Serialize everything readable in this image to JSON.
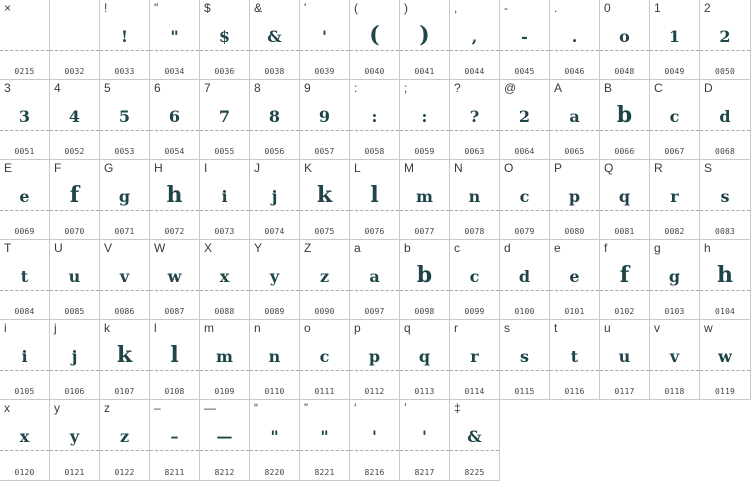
{
  "cells": [
    {
      "key": "×",
      "glyph": "",
      "code": "0215"
    },
    {
      "key": "",
      "glyph": "",
      "code": "0032"
    },
    {
      "key": "!",
      "glyph": "!",
      "code": "0033"
    },
    {
      "key": "\"",
      "glyph": "\"",
      "code": "0034"
    },
    {
      "key": "$",
      "glyph": "$",
      "code": "0036"
    },
    {
      "key": "&",
      "glyph": "&",
      "code": "0038"
    },
    {
      "key": "'",
      "glyph": "'",
      "code": "0039"
    },
    {
      "key": "(",
      "glyph": "(",
      "code": "0040"
    },
    {
      "key": ")",
      "glyph": ")",
      "code": "0041"
    },
    {
      "key": ",",
      "glyph": ",",
      "code": "0044"
    },
    {
      "key": "-",
      "glyph": "-",
      "code": "0045"
    },
    {
      "key": ".",
      "glyph": ".",
      "code": "0046"
    },
    {
      "key": "0",
      "glyph": "o",
      "code": "0048"
    },
    {
      "key": "1",
      "glyph": "1",
      "code": "0049"
    },
    {
      "key": "2",
      "glyph": "2",
      "code": "0050"
    },
    {
      "key": "3",
      "glyph": "3",
      "code": "0051"
    },
    {
      "key": "4",
      "glyph": "4",
      "code": "0052"
    },
    {
      "key": "5",
      "glyph": "5",
      "code": "0053"
    },
    {
      "key": "6",
      "glyph": "6",
      "code": "0054"
    },
    {
      "key": "7",
      "glyph": "7",
      "code": "0055"
    },
    {
      "key": "8",
      "glyph": "8",
      "code": "0056"
    },
    {
      "key": "9",
      "glyph": "9",
      "code": "0057"
    },
    {
      "key": ":",
      "glyph": ":",
      "code": "0058"
    },
    {
      "key": ";",
      "glyph": ":",
      "code": "0059"
    },
    {
      "key": "?",
      "glyph": "?",
      "code": "0063"
    },
    {
      "key": "@",
      "glyph": "2",
      "code": "0064"
    },
    {
      "key": "A",
      "glyph": "a",
      "code": "0065"
    },
    {
      "key": "B",
      "glyph": "b",
      "code": "0066"
    },
    {
      "key": "C",
      "glyph": "c",
      "code": "0067"
    },
    {
      "key": "D",
      "glyph": "d",
      "code": "0068"
    },
    {
      "key": "E",
      "glyph": "e",
      "code": "0069"
    },
    {
      "key": "F",
      "glyph": "f",
      "code": "0070"
    },
    {
      "key": "G",
      "glyph": "g",
      "code": "0071"
    },
    {
      "key": "H",
      "glyph": "h",
      "code": "0072"
    },
    {
      "key": "I",
      "glyph": "i",
      "code": "0073"
    },
    {
      "key": "J",
      "glyph": "j",
      "code": "0074"
    },
    {
      "key": "K",
      "glyph": "k",
      "code": "0075"
    },
    {
      "key": "L",
      "glyph": "l",
      "code": "0076"
    },
    {
      "key": "M",
      "glyph": "m",
      "code": "0077"
    },
    {
      "key": "N",
      "glyph": "n",
      "code": "0078"
    },
    {
      "key": "O",
      "glyph": "c",
      "code": "0079"
    },
    {
      "key": "P",
      "glyph": "p",
      "code": "0080"
    },
    {
      "key": "Q",
      "glyph": "q",
      "code": "0081"
    },
    {
      "key": "R",
      "glyph": "r",
      "code": "0082"
    },
    {
      "key": "S",
      "glyph": "s",
      "code": "0083"
    },
    {
      "key": "T",
      "glyph": "t",
      "code": "0084"
    },
    {
      "key": "U",
      "glyph": "u",
      "code": "0085"
    },
    {
      "key": "V",
      "glyph": "v",
      "code": "0086"
    },
    {
      "key": "W",
      "glyph": "w",
      "code": "0087"
    },
    {
      "key": "X",
      "glyph": "x",
      "code": "0088"
    },
    {
      "key": "Y",
      "glyph": "y",
      "code": "0089"
    },
    {
      "key": "Z",
      "glyph": "z",
      "code": "0090"
    },
    {
      "key": "a",
      "glyph": "a",
      "code": "0097"
    },
    {
      "key": "b",
      "glyph": "b",
      "code": "0098"
    },
    {
      "key": "c",
      "glyph": "c",
      "code": "0099"
    },
    {
      "key": "d",
      "glyph": "d",
      "code": "0100"
    },
    {
      "key": "e",
      "glyph": "e",
      "code": "0101"
    },
    {
      "key": "f",
      "glyph": "f",
      "code": "0102"
    },
    {
      "key": "g",
      "glyph": "g",
      "code": "0103"
    },
    {
      "key": "h",
      "glyph": "h",
      "code": "0104"
    },
    {
      "key": "i",
      "glyph": "i",
      "code": "0105"
    },
    {
      "key": "j",
      "glyph": "j",
      "code": "0106"
    },
    {
      "key": "k",
      "glyph": "k",
      "code": "0107"
    },
    {
      "key": "l",
      "glyph": "l",
      "code": "0108"
    },
    {
      "key": "m",
      "glyph": "m",
      "code": "0109"
    },
    {
      "key": "n",
      "glyph": "n",
      "code": "0110"
    },
    {
      "key": "o",
      "glyph": "c",
      "code": "0111"
    },
    {
      "key": "p",
      "glyph": "p",
      "code": "0112"
    },
    {
      "key": "q",
      "glyph": "q",
      "code": "0113"
    },
    {
      "key": "r",
      "glyph": "r",
      "code": "0114"
    },
    {
      "key": "s",
      "glyph": "s",
      "code": "0115"
    },
    {
      "key": "t",
      "glyph": "t",
      "code": "0116"
    },
    {
      "key": "u",
      "glyph": "u",
      "code": "0117"
    },
    {
      "key": "v",
      "glyph": "v",
      "code": "0118"
    },
    {
      "key": "w",
      "glyph": "w",
      "code": "0119"
    },
    {
      "key": "x",
      "glyph": "x",
      "code": "0120"
    },
    {
      "key": "y",
      "glyph": "y",
      "code": "0121"
    },
    {
      "key": "z",
      "glyph": "z",
      "code": "0122"
    },
    {
      "key": "–",
      "glyph": "–",
      "code": "8211"
    },
    {
      "key": "—",
      "glyph": "—",
      "code": "8212"
    },
    {
      "key": "“",
      "glyph": "\"",
      "code": "8220"
    },
    {
      "key": "”",
      "glyph": "\"",
      "code": "8221"
    },
    {
      "key": "‘",
      "glyph": "'",
      "code": "8216"
    },
    {
      "key": "’",
      "glyph": "'",
      "code": "8217"
    },
    {
      "key": "‡",
      "glyph": "&",
      "code": "8225"
    }
  ],
  "colors": {
    "glyph": "#1f4548",
    "grid_line": "#c9c9c9",
    "baseline": "#a8a8a8"
  }
}
